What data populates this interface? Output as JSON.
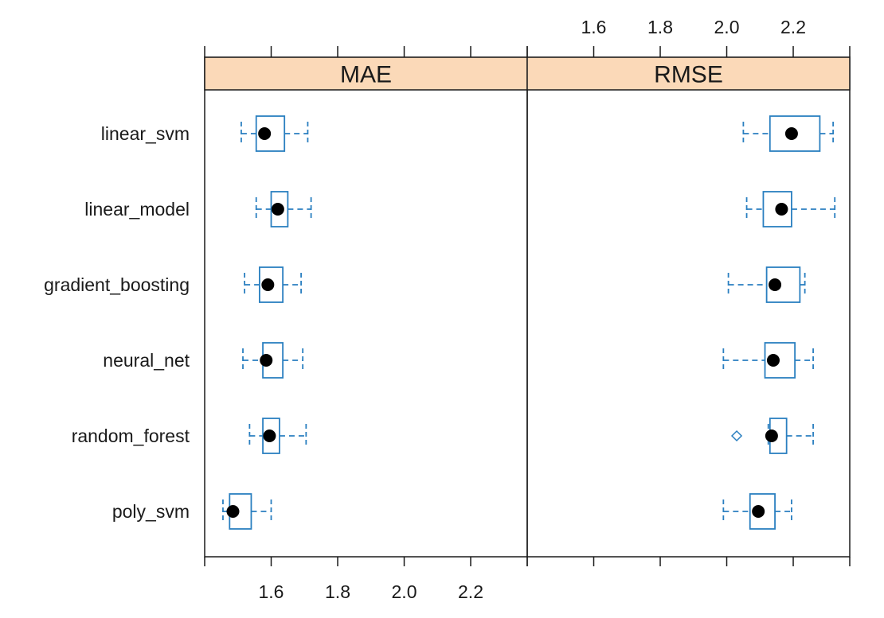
{
  "chart_data": {
    "type": "boxplot",
    "categories": [
      "linear_svm",
      "linear_model",
      "gradient_boosting",
      "neural_net",
      "random_forest",
      "poly_svm"
    ],
    "x_ticks": [
      1.6,
      1.8,
      2.0,
      2.2
    ],
    "xlim": [
      1.4,
      2.37
    ],
    "colors": {
      "box": "#2a7fc0",
      "median": "#000000",
      "outlier": "#2a7fc0",
      "strip": "#fbd9b8",
      "frame": "#1a1a1a"
    },
    "panels": [
      {
        "title": "MAE",
        "boxes": [
          {
            "category": "linear_svm",
            "min": 1.51,
            "q1": 1.555,
            "median": 1.58,
            "q3": 1.64,
            "max": 1.71
          },
          {
            "category": "linear_model",
            "min": 1.555,
            "q1": 1.6,
            "median": 1.62,
            "q3": 1.65,
            "max": 1.72
          },
          {
            "category": "gradient_boosting",
            "min": 1.52,
            "q1": 1.565,
            "median": 1.59,
            "q3": 1.635,
            "max": 1.69
          },
          {
            "category": "neural_net",
            "min": 1.515,
            "q1": 1.575,
            "median": 1.585,
            "q3": 1.635,
            "max": 1.695
          },
          {
            "category": "random_forest",
            "min": 1.535,
            "q1": 1.575,
            "median": 1.595,
            "q3": 1.625,
            "max": 1.705
          },
          {
            "category": "poly_svm",
            "min": 1.455,
            "q1": 1.475,
            "median": 1.485,
            "q3": 1.54,
            "max": 1.6
          }
        ]
      },
      {
        "title": "RMSE",
        "boxes": [
          {
            "category": "linear_svm",
            "min": 2.05,
            "q1": 2.13,
            "median": 2.195,
            "q3": 2.28,
            "max": 2.32
          },
          {
            "category": "linear_model",
            "min": 2.06,
            "q1": 2.11,
            "median": 2.165,
            "q3": 2.195,
            "max": 2.325
          },
          {
            "category": "gradient_boosting",
            "min": 2.005,
            "q1": 2.12,
            "median": 2.145,
            "q3": 2.22,
            "max": 2.235
          },
          {
            "category": "neural_net",
            "min": 1.99,
            "q1": 2.115,
            "median": 2.14,
            "q3": 2.205,
            "max": 2.26
          },
          {
            "category": "random_forest",
            "min": 2.125,
            "q1": 2.13,
            "median": 2.135,
            "q3": 2.18,
            "max": 2.26,
            "outliers": [
              2.03
            ]
          },
          {
            "category": "poly_svm",
            "min": 1.99,
            "q1": 2.07,
            "median": 2.095,
            "q3": 2.145,
            "max": 2.195
          }
        ]
      }
    ]
  }
}
